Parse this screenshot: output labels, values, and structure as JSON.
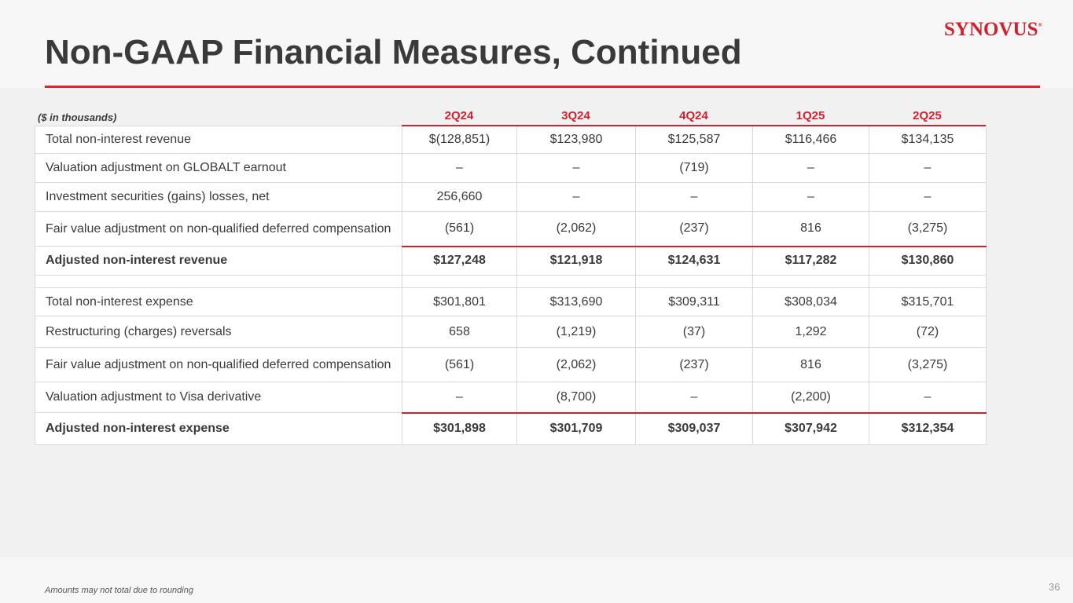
{
  "title": "Non-GAAP Financial Measures, Continued",
  "logo_text": "Synovus",
  "colors": {
    "accent": "#d0212f",
    "text": "#3a3a3a"
  },
  "table": {
    "units_label": "($ in thousands)",
    "columns": [
      "2Q24",
      "3Q24",
      "4Q24",
      "1Q25",
      "2Q25"
    ],
    "rows": [
      {
        "label": "Total non-interest revenue",
        "values": [
          "$(128,851)",
          "$123,980",
          "$125,587",
          "$116,466",
          "$134,135"
        ],
        "bold": false
      },
      {
        "label": "Valuation adjustment on GLOBALT earnout",
        "values": [
          "–",
          "–",
          "(719)",
          "–",
          "–"
        ],
        "bold": false
      },
      {
        "label": "Investment securities (gains) losses, net",
        "values": [
          "256,660",
          "–",
          "–",
          "–",
          "–"
        ],
        "bold": false
      },
      {
        "label": "Fair value adjustment on non-qualified deferred compensation",
        "values": [
          "(561)",
          "(2,062)",
          "(237)",
          "816",
          "(3,275)"
        ],
        "bold": false
      },
      {
        "label": "Adjusted non-interest revenue",
        "values": [
          "$127,248",
          "$121,918",
          "$124,631",
          "$117,282",
          "$130,860"
        ],
        "bold": true
      },
      {
        "label": "Total non-interest expense",
        "values": [
          "$301,801",
          "$313,690",
          "$309,311",
          "$308,034",
          "$315,701"
        ],
        "bold": false
      },
      {
        "label": "Restructuring (charges) reversals",
        "values": [
          "658",
          "(1,219)",
          "(37)",
          "1,292",
          "(72)"
        ],
        "bold": false
      },
      {
        "label": "Fair value adjustment on non-qualified deferred compensation",
        "values": [
          "(561)",
          "(2,062)",
          "(237)",
          "816",
          "(3,275)"
        ],
        "bold": false
      },
      {
        "label": "Valuation adjustment to Visa derivative",
        "values": [
          "–",
          "(8,700)",
          "–",
          "(2,200)",
          "–"
        ],
        "bold": false
      },
      {
        "label": "Adjusted non-interest expense",
        "values": [
          "$301,898",
          "$301,709",
          "$309,037",
          "$307,942",
          "$312,354"
        ],
        "bold": true
      }
    ]
  },
  "footnote": "Amounts may not total due to rounding",
  "page_number": "36"
}
